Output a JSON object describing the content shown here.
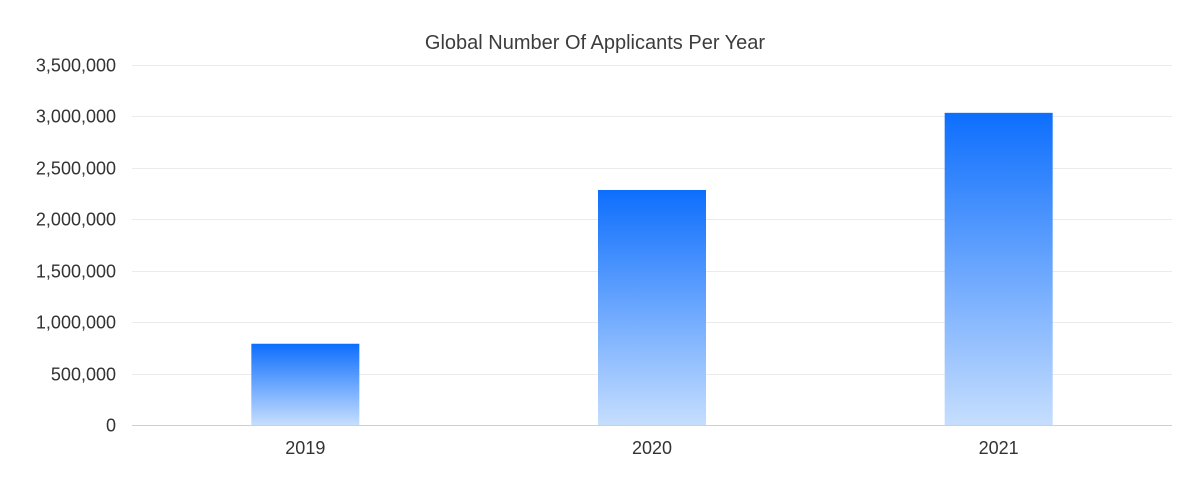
{
  "chart_data": {
    "type": "bar",
    "title": "Global Number Of Applicants Per Year",
    "xlabel": "",
    "ylabel": "",
    "categories": [
      "2019",
      "2020",
      "2021"
    ],
    "values": [
      790000,
      2285000,
      3035000
    ],
    "ylim": [
      0,
      3500000
    ],
    "yticks": [
      0,
      500000,
      1000000,
      1500000,
      2000000,
      2500000,
      3000000,
      3500000
    ],
    "ytick_labels": [
      "0",
      "500,000",
      "1,000,000",
      "1,500,000",
      "2,000,000",
      "2,500,000",
      "3,000,000",
      "3,500,000"
    ],
    "grid": true,
    "legend": "none",
    "colors": {
      "bar_top": "#0d6efd",
      "bar_bottom": "#c6defe",
      "grid": "#ebebeb",
      "text": "#333333"
    }
  }
}
